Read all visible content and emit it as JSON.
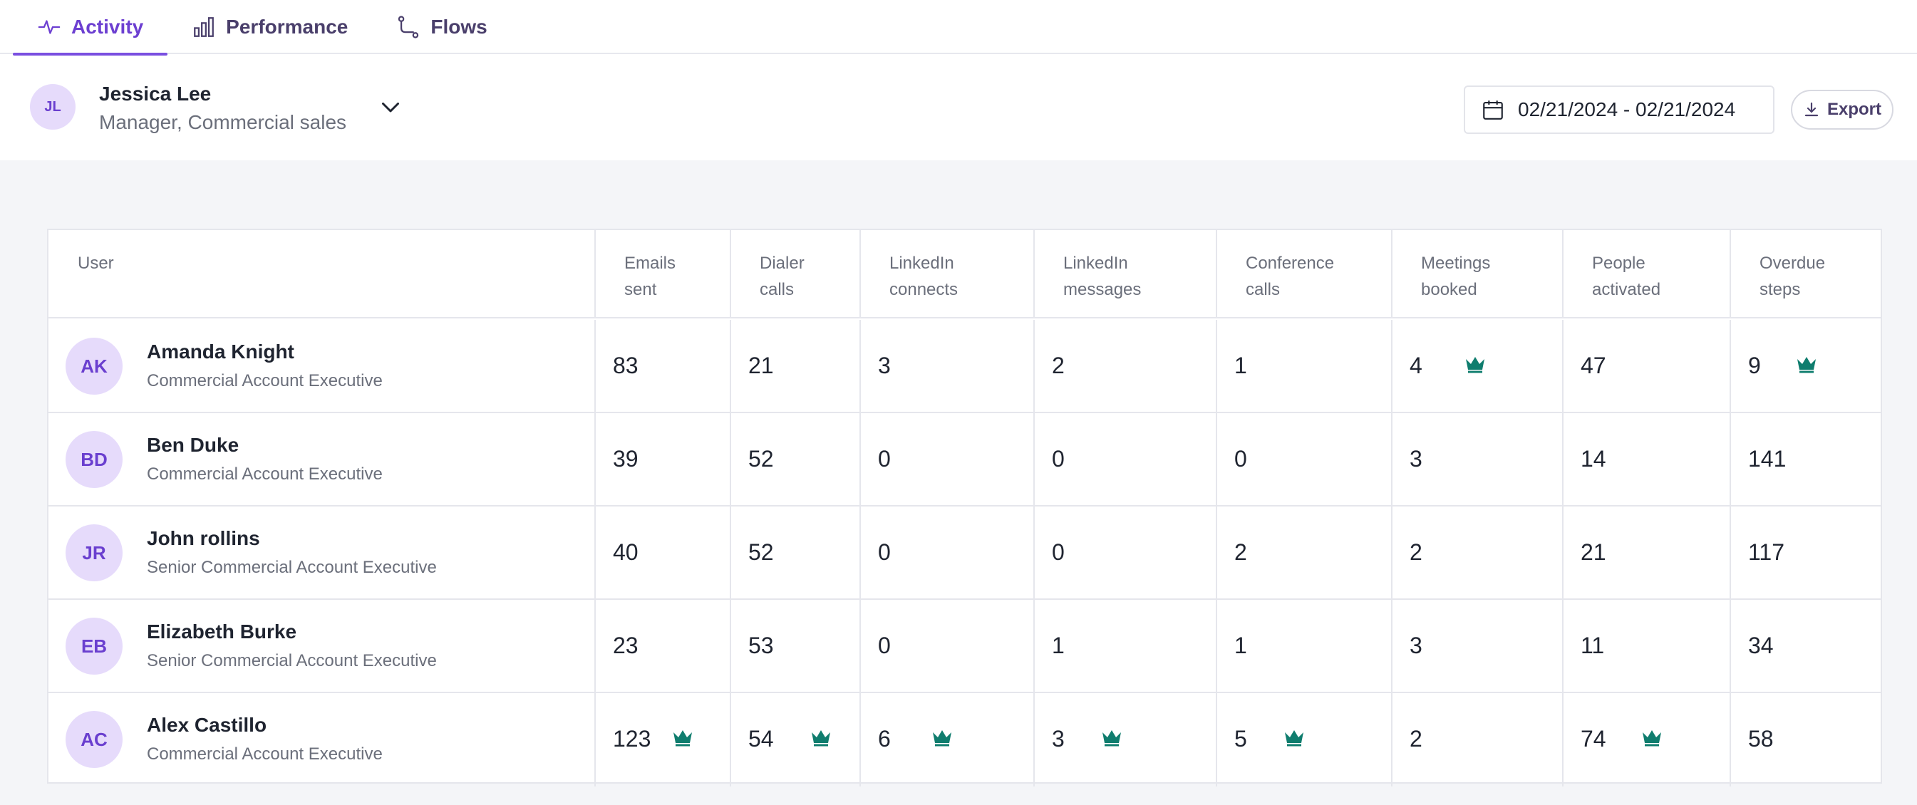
{
  "tabs": [
    {
      "label": "Activity",
      "icon": "activity-icon",
      "active": true
    },
    {
      "label": "Performance",
      "icon": "bar-chart-icon",
      "active": false
    },
    {
      "label": "Flows",
      "icon": "flow-icon",
      "active": false
    }
  ],
  "current_user": {
    "initials": "JL",
    "name": "Jessica Lee",
    "role": "Manager, Commercial sales"
  },
  "date_range": "02/21/2024 - 02/21/2024",
  "export_label": "Export",
  "accent_color": "#7a4fe0",
  "crown_color": "#0f7d6e",
  "table": {
    "headers": [
      "User",
      "Emails\nsent",
      "Dialer\ncalls",
      "LinkedIn\nconnects",
      "LinkedIn\nmessages",
      "Conference\ncalls",
      "Meetings\nbooked",
      "People\nactivated",
      "Overdue\nsteps"
    ],
    "rows": [
      {
        "initials": "AK",
        "name": "Amanda Knight",
        "title": "Commercial Account Executive",
        "values": [
          "83",
          "21",
          "3",
          "2",
          "1",
          "4",
          "47",
          "9"
        ],
        "top": [
          false,
          false,
          false,
          false,
          false,
          true,
          false,
          true
        ]
      },
      {
        "initials": "BD",
        "name": "Ben Duke",
        "title": "Commercial Account Executive",
        "values": [
          "39",
          "52",
          "0",
          "0",
          "0",
          "3",
          "14",
          "141"
        ],
        "top": [
          false,
          false,
          false,
          false,
          false,
          false,
          false,
          false
        ]
      },
      {
        "initials": "JR",
        "name": "John rollins",
        "title": "Senior Commercial Account Executive",
        "values": [
          "40",
          "52",
          "0",
          "0",
          "2",
          "2",
          "21",
          "117"
        ],
        "top": [
          false,
          false,
          false,
          false,
          false,
          false,
          false,
          false
        ]
      },
      {
        "initials": "EB",
        "name": "Elizabeth Burke",
        "title": "Senior Commercial Account Executive",
        "values": [
          "23",
          "53",
          "0",
          "1",
          "1",
          "3",
          "11",
          "34"
        ],
        "top": [
          false,
          false,
          false,
          false,
          false,
          false,
          false,
          false
        ]
      },
      {
        "initials": "AC",
        "name": "Alex Castillo",
        "title": "Commercial Account Executive",
        "values": [
          "123",
          "54",
          "6",
          "3",
          "5",
          "2",
          "74",
          "58"
        ],
        "top": [
          true,
          true,
          true,
          true,
          true,
          false,
          true,
          false
        ]
      }
    ]
  }
}
